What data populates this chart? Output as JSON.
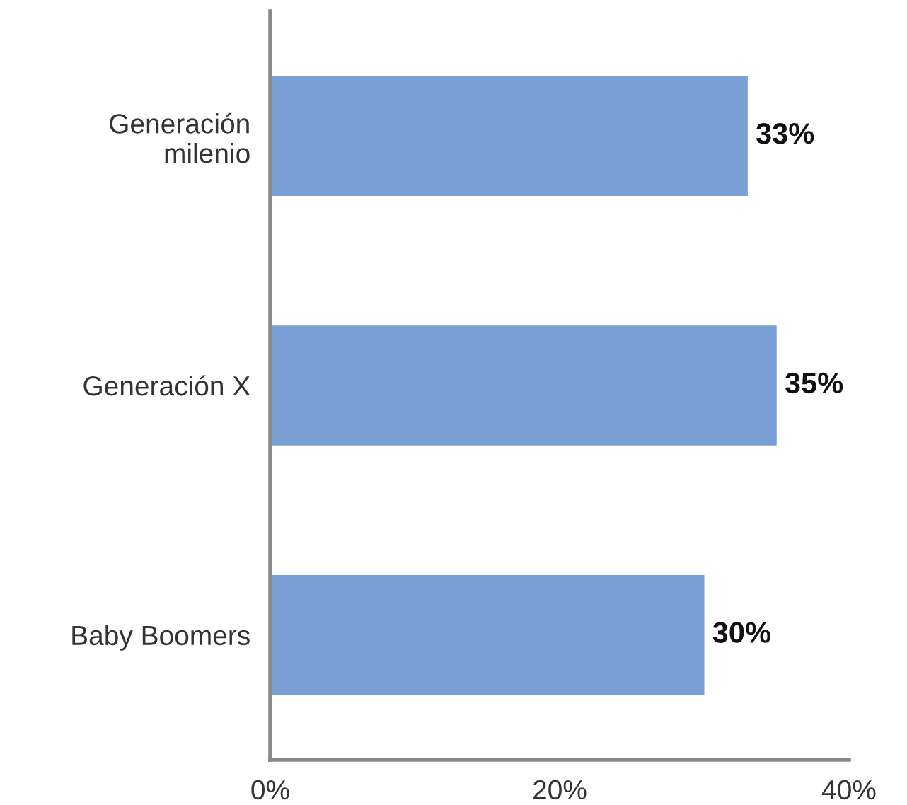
{
  "chart_data": {
    "type": "bar",
    "orientation": "horizontal",
    "categories": [
      "Generación milenio",
      "Generación X",
      "Baby Boomers"
    ],
    "values": [
      33,
      35,
      30
    ],
    "value_labels": [
      "33%",
      "35%",
      "30%"
    ],
    "color": "#7a9fd4",
    "xlim": [
      0,
      40
    ],
    "xticks": [
      {
        "value": 0,
        "label": "0%"
      },
      {
        "value": 20,
        "label": "20%"
      },
      {
        "value": 40,
        "label": "40%"
      }
    ],
    "grid": false,
    "legend": false
  }
}
